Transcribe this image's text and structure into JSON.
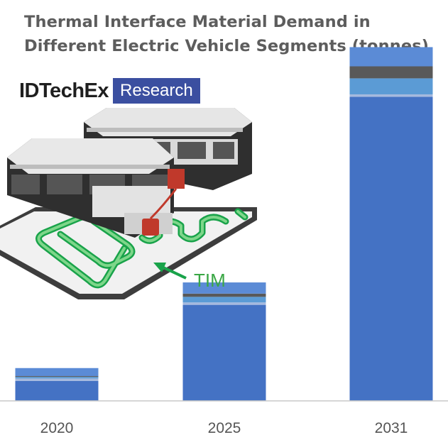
{
  "title_line1": "Thermal Interface Material Demand in",
  "title_line2": "Different Electric Vehicle Segments (tonnes)",
  "logo": {
    "word": "IDTechEx",
    "box": "Research"
  },
  "illustration": {
    "label": "TIM"
  },
  "colors": {
    "primary_segment": "#4472c4",
    "accent_dark": "#595959",
    "accent_light": "#5b9bd5",
    "cap": "#5b8bd6"
  },
  "chart_data": {
    "type": "bar",
    "stacked": true,
    "categories": [
      "2020",
      "2025",
      "2031"
    ],
    "series": [
      {
        "values": [
          50,
          240,
          760
        ]
      },
      {
        "values": [
          6,
          6,
          6
        ]
      },
      {
        "values": [
          4,
          14,
          40
        ]
      },
      {
        "values": [
          2,
          8,
          30
        ]
      },
      {
        "values": [
          20,
          28,
          48
        ]
      }
    ],
    "series_colors": [
      "#4472c4",
      "#a5b9de",
      "#5b9bd5",
      "#595959",
      "#5b8bd6"
    ],
    "ylim": [
      0,
      1000
    ],
    "xlabel": "",
    "ylabel": "",
    "grid": false
  }
}
